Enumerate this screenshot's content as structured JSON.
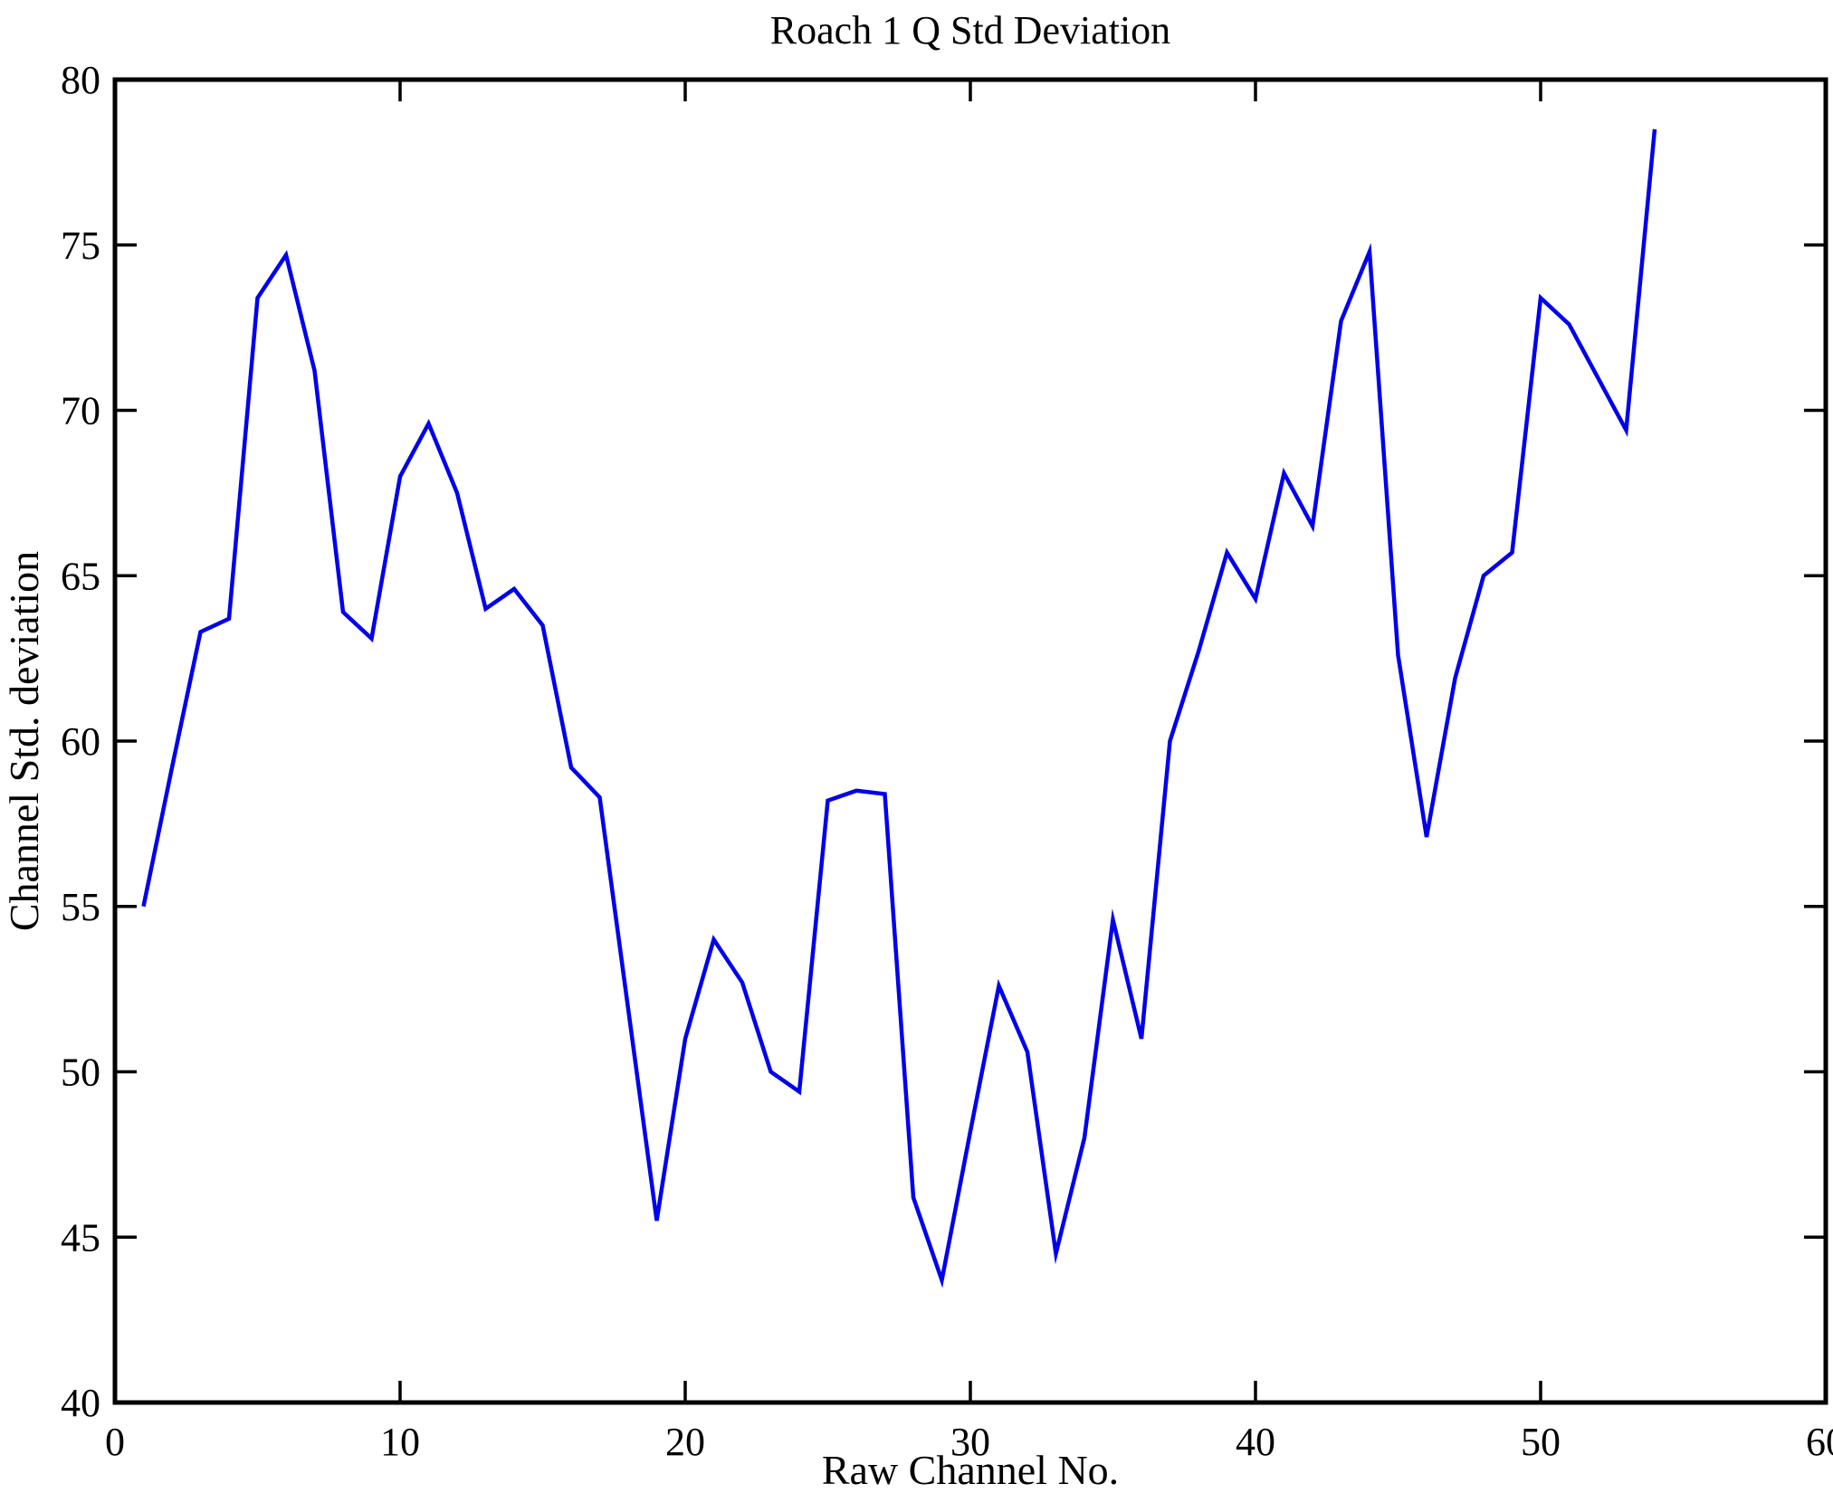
{
  "title": "Roach 1 Q Std Deviation",
  "chart_data": {
    "type": "line",
    "title": "Roach 1 Q Std Deviation",
    "xlabel": "Raw Channel No.",
    "ylabel": "Channel Std. deviation",
    "xlim": [
      0,
      60
    ],
    "ylim": [
      40,
      80
    ],
    "x_ticks": [
      0,
      10,
      20,
      30,
      40,
      50,
      60
    ],
    "y_ticks": [
      40,
      45,
      50,
      55,
      60,
      65,
      70,
      75,
      80
    ],
    "grid": false,
    "legend_position": "none",
    "box": true,
    "tick_direction": "in",
    "line_color": "#0000ee",
    "axis_color": "#000000",
    "background_color": "#ffffff",
    "series": [
      {
        "name": "channel-std-deviation",
        "x": [
          1,
          2,
          3,
          4,
          5,
          6,
          7,
          8,
          9,
          10,
          11,
          12,
          13,
          14,
          15,
          16,
          17,
          18,
          19,
          20,
          21,
          22,
          23,
          24,
          25,
          26,
          27,
          28,
          29,
          30,
          31,
          32,
          33,
          34,
          35,
          36,
          37,
          38,
          39,
          40,
          41,
          42,
          43,
          44,
          45,
          46,
          47,
          48,
          49,
          50,
          51,
          52,
          53,
          54
        ],
        "y": [
          55.0,
          59.2,
          63.3,
          63.7,
          73.4,
          74.7,
          71.2,
          63.9,
          63.1,
          68.0,
          69.6,
          67.5,
          64.0,
          64.6,
          63.5,
          59.2,
          58.3,
          51.9,
          45.5,
          51.0,
          54.0,
          52.7,
          50.0,
          49.4,
          58.2,
          58.5,
          58.4,
          46.2,
          43.7,
          48.2,
          52.6,
          50.6,
          44.5,
          48.0,
          54.6,
          51.0,
          60.0,
          62.7,
          65.7,
          64.3,
          68.1,
          66.5,
          72.7,
          74.8,
          62.6,
          57.1,
          61.9,
          65.0,
          65.7,
          73.4,
          72.6,
          71.0,
          69.4,
          78.5
        ]
      }
    ]
  }
}
